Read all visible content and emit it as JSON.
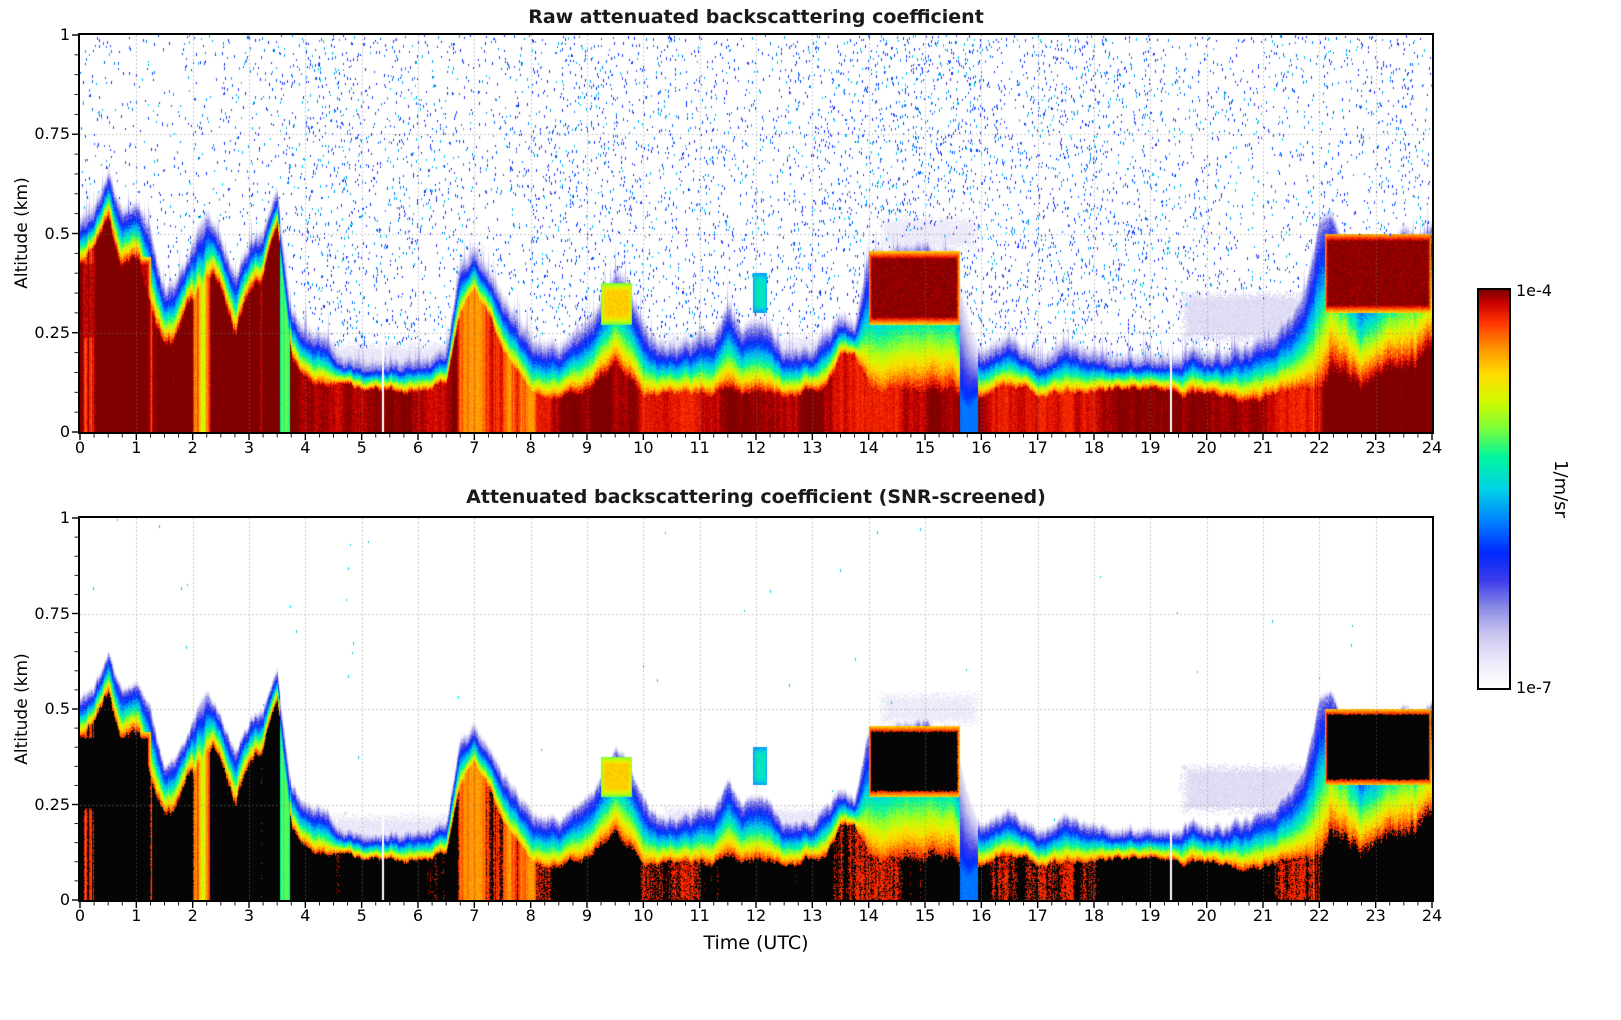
{
  "chart_data": {
    "type": "heatmap",
    "panels": [
      {
        "id": "raw",
        "title": "Raw attenuated backscattering coefficient",
        "ylabel": "Altitude (km)",
        "speckle_noise": true
      },
      {
        "id": "screened",
        "title": "Attenuated backscattering coefficient (SNR-screened)",
        "ylabel": "Altitude (km)",
        "speckle_noise": false,
        "saturation_color": "#000000"
      }
    ],
    "x_axis": {
      "label": "Time (UTC)",
      "min": 0,
      "max": 24,
      "tick_labels": [
        "0",
        "1",
        "2",
        "3",
        "4",
        "5",
        "6",
        "7",
        "8",
        "9",
        "10",
        "11",
        "12",
        "13",
        "14",
        "15",
        "16",
        "17",
        "18",
        "19",
        "20",
        "21",
        "22",
        "23",
        "24"
      ],
      "tick_values": [
        0,
        1,
        2,
        3,
        4,
        5,
        6,
        7,
        8,
        9,
        10,
        11,
        12,
        13,
        14,
        15,
        16,
        17,
        18,
        19,
        20,
        21,
        22,
        23,
        24
      ]
    },
    "y_axis": {
      "label": "Altitude (km)",
      "min": 0,
      "max": 1,
      "tick_labels": [
        "1",
        "0.75",
        "0.5",
        "0.25",
        "0"
      ],
      "tick_values": [
        1,
        0.75,
        0.5,
        0.25,
        0
      ]
    },
    "colorbar": {
      "max_label": "1e-4",
      "min_label": "1e-7",
      "units": "1/m/sr",
      "scale": "log",
      "colormap": [
        [
          0.0,
          "#ffffff"
        ],
        [
          0.06,
          "#eeecfa"
        ],
        [
          0.13,
          "#cdc8f0"
        ],
        [
          0.2,
          "#8c8ce6"
        ],
        [
          0.27,
          "#3c3ceb"
        ],
        [
          0.34,
          "#0028ff"
        ],
        [
          0.42,
          "#0082ff"
        ],
        [
          0.5,
          "#00d2e6"
        ],
        [
          0.58,
          "#00f5a0"
        ],
        [
          0.65,
          "#78ff3c"
        ],
        [
          0.72,
          "#d2fa00"
        ],
        [
          0.79,
          "#ffdc00"
        ],
        [
          0.86,
          "#ff8c00"
        ],
        [
          0.92,
          "#ff3200"
        ],
        [
          0.97,
          "#c80000"
        ],
        [
          1.0,
          "#800000"
        ]
      ]
    },
    "grid": {
      "color": "#b0b0b0",
      "style": "dotted"
    },
    "field_model": {
      "sampling_hours": 0.25,
      "layer_top_km": [
        0.52,
        0.56,
        0.6,
        0.5,
        0.52,
        0.46,
        0.3,
        0.34,
        0.44,
        0.5,
        0.44,
        0.34,
        0.44,
        0.48,
        0.62,
        0.28,
        0.22,
        0.2,
        0.19,
        0.19,
        0.19,
        0.19,
        0.19,
        0.19,
        0.2,
        0.2,
        0.22,
        0.42,
        0.47,
        0.42,
        0.34,
        0.29,
        0.25,
        0.22,
        0.22,
        0.24,
        0.25,
        0.3,
        0.38,
        0.36,
        0.26,
        0.22,
        0.22,
        0.22,
        0.24,
        0.25,
        0.32,
        0.26,
        0.28,
        0.25,
        0.22,
        0.22,
        0.22,
        0.26,
        0.28,
        0.28,
        0.44,
        0.46,
        0.46,
        0.46,
        0.46,
        0.44,
        0.46,
        0.3,
        0.21,
        0.23,
        0.25,
        0.22,
        0.2,
        0.2,
        0.2,
        0.2,
        0.2,
        0.2,
        0.2,
        0.2,
        0.2,
        0.2,
        0.2,
        0.2,
        0.2,
        0.2,
        0.21,
        0.21,
        0.22,
        0.22,
        0.24,
        0.3,
        0.48,
        0.5,
        0.46,
        0.36,
        0.4,
        0.46,
        0.5,
        0.48,
        0.52
      ],
      "core_top_km": [
        0.42,
        0.46,
        0.5,
        0.4,
        0.42,
        0.32,
        0.2,
        0.24,
        0.32,
        0.38,
        0.34,
        0.24,
        0.34,
        0.38,
        0.5,
        0.16,
        0.12,
        0.1,
        0.1,
        0.1,
        0.1,
        0.1,
        0.1,
        0.1,
        0.1,
        0.1,
        0.12,
        0.3,
        0.38,
        0.3,
        0.22,
        0.17,
        0.12,
        0.1,
        0.1,
        0.1,
        0.1,
        0.12,
        0.16,
        0.13,
        0.1,
        0.1,
        0.1,
        0.1,
        0.1,
        0.1,
        0.12,
        0.1,
        0.1,
        0.1,
        0.1,
        0.1,
        0.1,
        0.13,
        0.2,
        0.2,
        0.12,
        0.1,
        0.1,
        0.1,
        0.1,
        0.1,
        0.12,
        0.07,
        0.1,
        0.12,
        0.12,
        0.1,
        0.09,
        0.09,
        0.09,
        0.09,
        0.09,
        0.09,
        0.09,
        0.09,
        0.09,
        0.09,
        0.09,
        0.09,
        0.09,
        0.09,
        0.09,
        0.09,
        0.09,
        0.09,
        0.1,
        0.11,
        0.12,
        0.12,
        0.12,
        0.1,
        0.12,
        0.14,
        0.15,
        0.15,
        0.17
      ],
      "elevated_bands": [
        {
          "t": [
            14.0,
            15.62
          ],
          "alt": [
            0.27,
            0.455
          ],
          "value": 1.0
        },
        {
          "t": [
            22.1,
            24.0
          ],
          "alt": [
            0.3,
            0.5
          ],
          "value": 1.0
        },
        {
          "t": [
            9.25,
            9.8
          ],
          "alt": [
            0.27,
            0.375
          ],
          "value": 0.8
        },
        {
          "t": [
            11.95,
            12.2
          ],
          "alt": [
            0.3,
            0.4
          ],
          "value": 0.55
        },
        {
          "t": [
            0.0,
            1.25
          ],
          "alt": [
            0.22,
            0.44
          ],
          "value": 0.97
        }
      ],
      "weak_columns": [
        {
          "t": [
            15.62,
            15.95
          ],
          "factor": 0.4
        },
        {
          "t": [
            3.55,
            3.72
          ],
          "factor": 0.55
        }
      ],
      "subthreshold_patches": [
        {
          "t": [
            4.3,
            6.6
          ],
          "alt": [
            0.15,
            0.23
          ],
          "value": 0.07
        },
        {
          "t": [
            9.0,
            9.7
          ],
          "alt": [
            0.18,
            0.28
          ],
          "value": 0.08
        },
        {
          "t": [
            10.3,
            13.6
          ],
          "alt": [
            0.17,
            0.25
          ],
          "value": 0.07
        },
        {
          "t": [
            19.5,
            22.0
          ],
          "alt": [
            0.22,
            0.36
          ],
          "value": 0.09
        },
        {
          "t": [
            22.4,
            23.6
          ],
          "alt": [
            0.27,
            0.42
          ],
          "value": 0.08
        },
        {
          "t": [
            14.15,
            16.0
          ],
          "alt": [
            0.45,
            0.55
          ],
          "value": 0.06
        }
      ],
      "data_gap_hours": [
        5.37,
        19.37
      ],
      "speckle_density_per_hour": [
        0.25,
        0.25,
        0.3,
        0.35,
        0.6,
        0.5,
        0.45,
        0.35,
        0.5,
        0.55,
        0.45,
        0.4,
        0.45,
        0.5,
        0.7,
        0.65,
        0.55,
        0.6,
        0.55,
        0.4,
        0.3,
        0.35,
        0.45,
        0.4
      ]
    }
  }
}
